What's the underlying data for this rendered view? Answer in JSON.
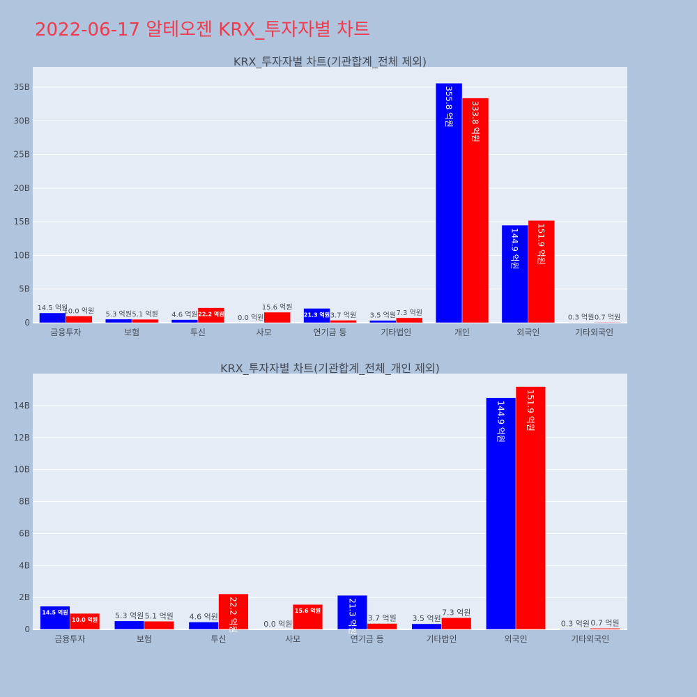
{
  "page": {
    "title": "2022-06-17 알테오젠 KRX_투자자별 차트"
  },
  "colors": {
    "background": "#b0c4de",
    "plot_background": "#e5ecf6",
    "series1": "#0000ff",
    "series2": "#ff0000",
    "title": "#ef3b4e",
    "text": "#444a55"
  },
  "chart_data": [
    {
      "type": "bar",
      "title": "KRX_투자자별 차트(기관합계_전체 제외)",
      "categories": [
        "금융투자",
        "보험",
        "투신",
        "사모",
        "연기금 등",
        "기타법인",
        "개인",
        "외국인",
        "기타외국인"
      ],
      "series": [
        {
          "color": "#0000ff",
          "values": [
            1.45,
            0.53,
            0.46,
            0.0,
            2.13,
            0.35,
            35.58,
            14.49,
            0.03
          ],
          "labels": [
            "14.5 억원",
            "5.3 억원",
            "4.6 억원",
            "0.0 억원",
            "21.3 억원",
            "3.5 억원",
            "355.8 억원",
            "144.9 억원",
            "0.3 억원"
          ]
        },
        {
          "color": "#ff0000",
          "values": [
            1.0,
            0.51,
            2.22,
            1.56,
            0.37,
            0.73,
            33.38,
            15.19,
            0.07
          ],
          "labels": [
            "10.0 억원",
            "5.1 억원",
            "22.2 억원",
            "15.6 억원",
            "3.7 억원",
            "7.3 억원",
            "333.8 억원",
            "151.9 억원",
            "0.7 억원"
          ]
        }
      ],
      "ylim": [
        0,
        38
      ],
      "ytick_values": [
        0,
        5,
        10,
        15,
        20,
        25,
        30,
        35
      ],
      "ytick_labels": [
        "0",
        "5B",
        "10B",
        "15B",
        "20B",
        "25B",
        "30B",
        "35B"
      ],
      "grid": true
    },
    {
      "type": "bar",
      "title": "KRX_투자자별 차트(기관합계_전체_개인 제외)",
      "categories": [
        "금융투자",
        "보험",
        "투신",
        "사모",
        "연기금 등",
        "기타법인",
        "외국인",
        "기타외국인"
      ],
      "series": [
        {
          "color": "#0000ff",
          "values": [
            1.45,
            0.53,
            0.46,
            0.0,
            2.13,
            0.35,
            14.49,
            0.03
          ],
          "labels": [
            "14.5 억원",
            "5.3 억원",
            "4.6 억원",
            "0.0 억원",
            "21.3 억원",
            "3.5 억원",
            "144.9 억원",
            "0.3 억원"
          ]
        },
        {
          "color": "#ff0000",
          "values": [
            1.0,
            0.51,
            2.22,
            1.56,
            0.37,
            0.73,
            15.19,
            0.07
          ],
          "labels": [
            "10.0 억원",
            "5.1 억원",
            "22.2 억원",
            "15.6 억원",
            "3.7 억원",
            "7.3 억원",
            "151.9 억원",
            "0.7 억원"
          ]
        }
      ],
      "ylim": [
        0,
        16
      ],
      "ytick_values": [
        0,
        2,
        4,
        6,
        8,
        10,
        12,
        14
      ],
      "ytick_labels": [
        "0",
        "2B",
        "4B",
        "6B",
        "8B",
        "10B",
        "12B",
        "14B"
      ],
      "grid": true
    }
  ]
}
